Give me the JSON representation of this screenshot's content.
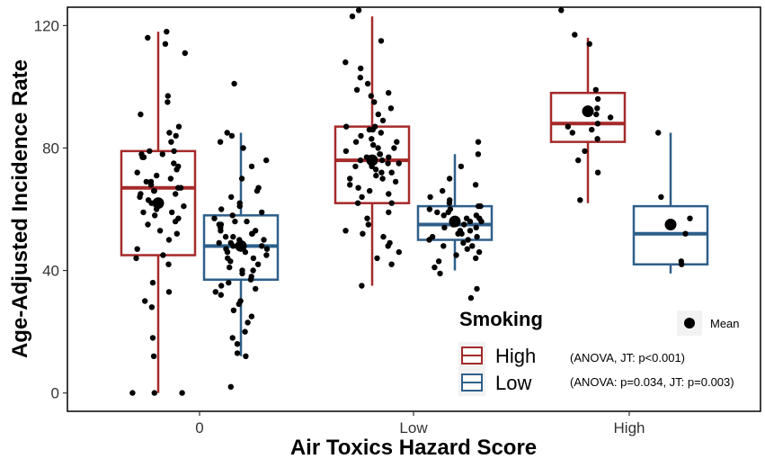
{
  "chart_data": {
    "type": "box",
    "xlabel": "Air Toxics Hazard Score",
    "ylabel": "Age-Adjusted Incidence Rate",
    "categories": [
      "0",
      "Low",
      "High"
    ],
    "ylim": [
      -6,
      126
    ],
    "yticks": [
      0,
      40,
      80,
      120
    ],
    "grid": false,
    "colors": {
      "High": "#a52a2a",
      "Low": "#2e5f8a",
      "points": "#000000"
    },
    "legend": {
      "title": "Smoking",
      "placement": "bottom-right",
      "entries": [
        {
          "label": "High",
          "note": "(ANOVA, JT: p<0.001)"
        },
        {
          "label": "Low",
          "note": "(ANOVA: p=0.034, JT: p=0.003)"
        }
      ],
      "mean_label": "Mean"
    },
    "series": [
      {
        "name": "High",
        "boxes": [
          {
            "category": "0",
            "whisker_low": 0,
            "q1": 45,
            "median": 67,
            "q3": 79,
            "whisker_high": 118,
            "mean": 62,
            "points": [
              118,
              116,
              114,
              111,
              97,
              95,
              91,
              87,
              85,
              84,
              82,
              79,
              79,
              78,
              78,
              77,
              77,
              75,
              74,
              73,
              72,
              71,
              70,
              69,
              69,
              68,
              67,
              67,
              66,
              66,
              65,
              65,
              64,
              63,
              62,
              62,
              61,
              60,
              59,
              59,
              58,
              57,
              56,
              55,
              53,
              52,
              50,
              47,
              45,
              44,
              42,
              36,
              33,
              30,
              28,
              18,
              12,
              0,
              0,
              0
            ]
          },
          {
            "category": "Low",
            "whisker_low": 35,
            "q1": 62,
            "median": 76,
            "q3": 87,
            "whisker_high": 123,
            "mean": 76,
            "points": [
              125,
              123,
              115,
              108,
              106,
              103,
              101,
              99,
              98,
              97,
              95,
              93,
              91,
              89,
              87,
              87,
              86,
              86,
              85,
              84,
              83,
              82,
              82,
              81,
              80,
              80,
              79,
              78,
              78,
              77,
              77,
              76,
              76,
              75,
              75,
              74,
              74,
              73,
              72,
              72,
              71,
              70,
              70,
              69,
              68,
              67,
              66,
              65,
              64,
              62,
              62,
              59,
              57,
              55,
              53,
              52,
              51,
              49,
              48,
              46,
              44,
              42,
              35
            ]
          },
          {
            "category": "High",
            "whisker_low": 62,
            "q1": 82,
            "median": 88,
            "q3": 98,
            "whisker_high": 116,
            "mean": 92,
            "points": [
              125,
              117,
              114,
              99,
              96,
              93,
              92,
              91,
              90,
              88,
              87,
              86,
              85,
              83,
              79,
              76,
              72,
              63
            ]
          }
        ]
      },
      {
        "name": "Low",
        "boxes": [
          {
            "category": "0",
            "whisker_low": 12,
            "q1": 37,
            "median": 48,
            "q3": 58,
            "whisker_high": 85,
            "mean": 48,
            "points": [
              101,
              85,
              84,
              82,
              80,
              76,
              74,
              70,
              67,
              66,
              64,
              62,
              61,
              60,
              59,
              58,
              57,
              56,
              56,
              55,
              55,
              54,
              53,
              53,
              52,
              52,
              51,
              51,
              50,
              50,
              49,
              49,
              48,
              48,
              47,
              47,
              46,
              46,
              45,
              44,
              44,
              43,
              42,
              41,
              40,
              40,
              39,
              38,
              37,
              36,
              35,
              34,
              33,
              32,
              30,
              29,
              27,
              25,
              23,
              20,
              18,
              16,
              13,
              12,
              2
            ]
          },
          {
            "category": "Low",
            "whisker_low": 40,
            "q1": 50,
            "median": 55,
            "q3": 61,
            "whisker_high": 78,
            "mean": 56,
            "points": [
              82,
              78,
              74,
              70,
              68,
              66,
              64,
              63,
              62,
              61,
              61,
              60,
              60,
              59,
              59,
              58,
              58,
              57,
              57,
              56,
              56,
              55,
              55,
              54,
              54,
              53,
              53,
              52,
              52,
              51,
              51,
              50,
              50,
              49,
              48,
              48,
              47,
              46,
              45,
              44,
              43,
              41,
              39,
              34,
              31
            ]
          },
          {
            "category": "High",
            "whisker_low": 39,
            "q1": 42,
            "median": 52,
            "q3": 61,
            "whisker_high": 85,
            "mean": 55,
            "points": [
              85,
              64,
              57,
              52,
              43,
              42
            ]
          }
        ]
      }
    ]
  }
}
